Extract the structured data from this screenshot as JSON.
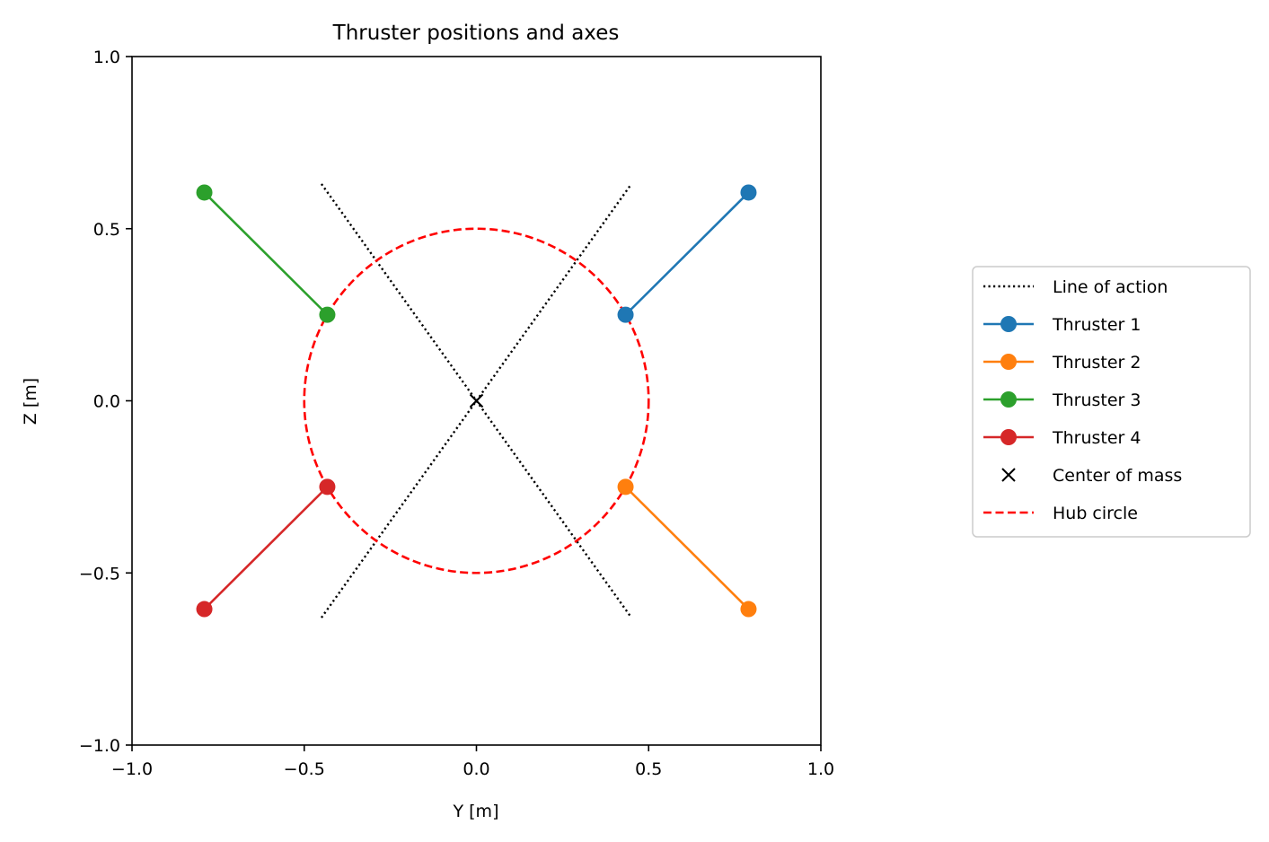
{
  "chart_data": {
    "type": "line",
    "title": "Thruster positions and axes",
    "xlabel": "Y [m]",
    "ylabel": "Z [m]",
    "xlim": [
      -1.0,
      1.0
    ],
    "ylim": [
      -1.0,
      1.0
    ],
    "aspect": "equal",
    "grid": false,
    "legend_position": "outside-right",
    "xticks": [
      -1.0,
      -0.5,
      0.0,
      0.5,
      1.0
    ],
    "yticks": [
      -1.0,
      -0.5,
      0.0,
      0.5,
      1.0
    ],
    "xtick_labels": [
      "−1.0",
      "−0.5",
      "0.0",
      "0.5",
      "1.0"
    ],
    "ytick_labels": [
      "−1.0",
      "−0.5",
      "0.0",
      "0.5",
      "1.0"
    ],
    "lines_of_action": [
      {
        "x": [
          -0.45,
          0.45
        ],
        "y": [
          -0.63,
          0.63
        ]
      },
      {
        "x": [
          -0.45,
          0.45
        ],
        "y": [
          0.63,
          -0.63
        ]
      }
    ],
    "series": [
      {
        "name": "Line of action",
        "style": "dotted",
        "color": "#000000",
        "marker": "none"
      },
      {
        "name": "Thruster 1",
        "color": "#1f77b4",
        "marker": "circle",
        "x": [
          0.433,
          0.79
        ],
        "y": [
          0.25,
          0.605
        ]
      },
      {
        "name": "Thruster 2",
        "color": "#ff7f0e",
        "marker": "circle",
        "x": [
          0.433,
          0.79
        ],
        "y": [
          -0.25,
          -0.605
        ]
      },
      {
        "name": "Thruster 3",
        "color": "#2ca02c",
        "marker": "circle",
        "x": [
          -0.433,
          -0.79
        ],
        "y": [
          0.25,
          0.605
        ]
      },
      {
        "name": "Thruster 4",
        "color": "#d62728",
        "marker": "circle",
        "x": [
          -0.433,
          -0.79
        ],
        "y": [
          -0.25,
          -0.605
        ]
      },
      {
        "name": "Center of mass",
        "color": "#000000",
        "marker": "x",
        "x": [
          0.0
        ],
        "y": [
          0.0
        ]
      },
      {
        "name": "Hub circle",
        "style": "dashed",
        "color": "#ff0000",
        "center": [
          0.0,
          0.0
        ],
        "radius": 0.5
      }
    ]
  }
}
